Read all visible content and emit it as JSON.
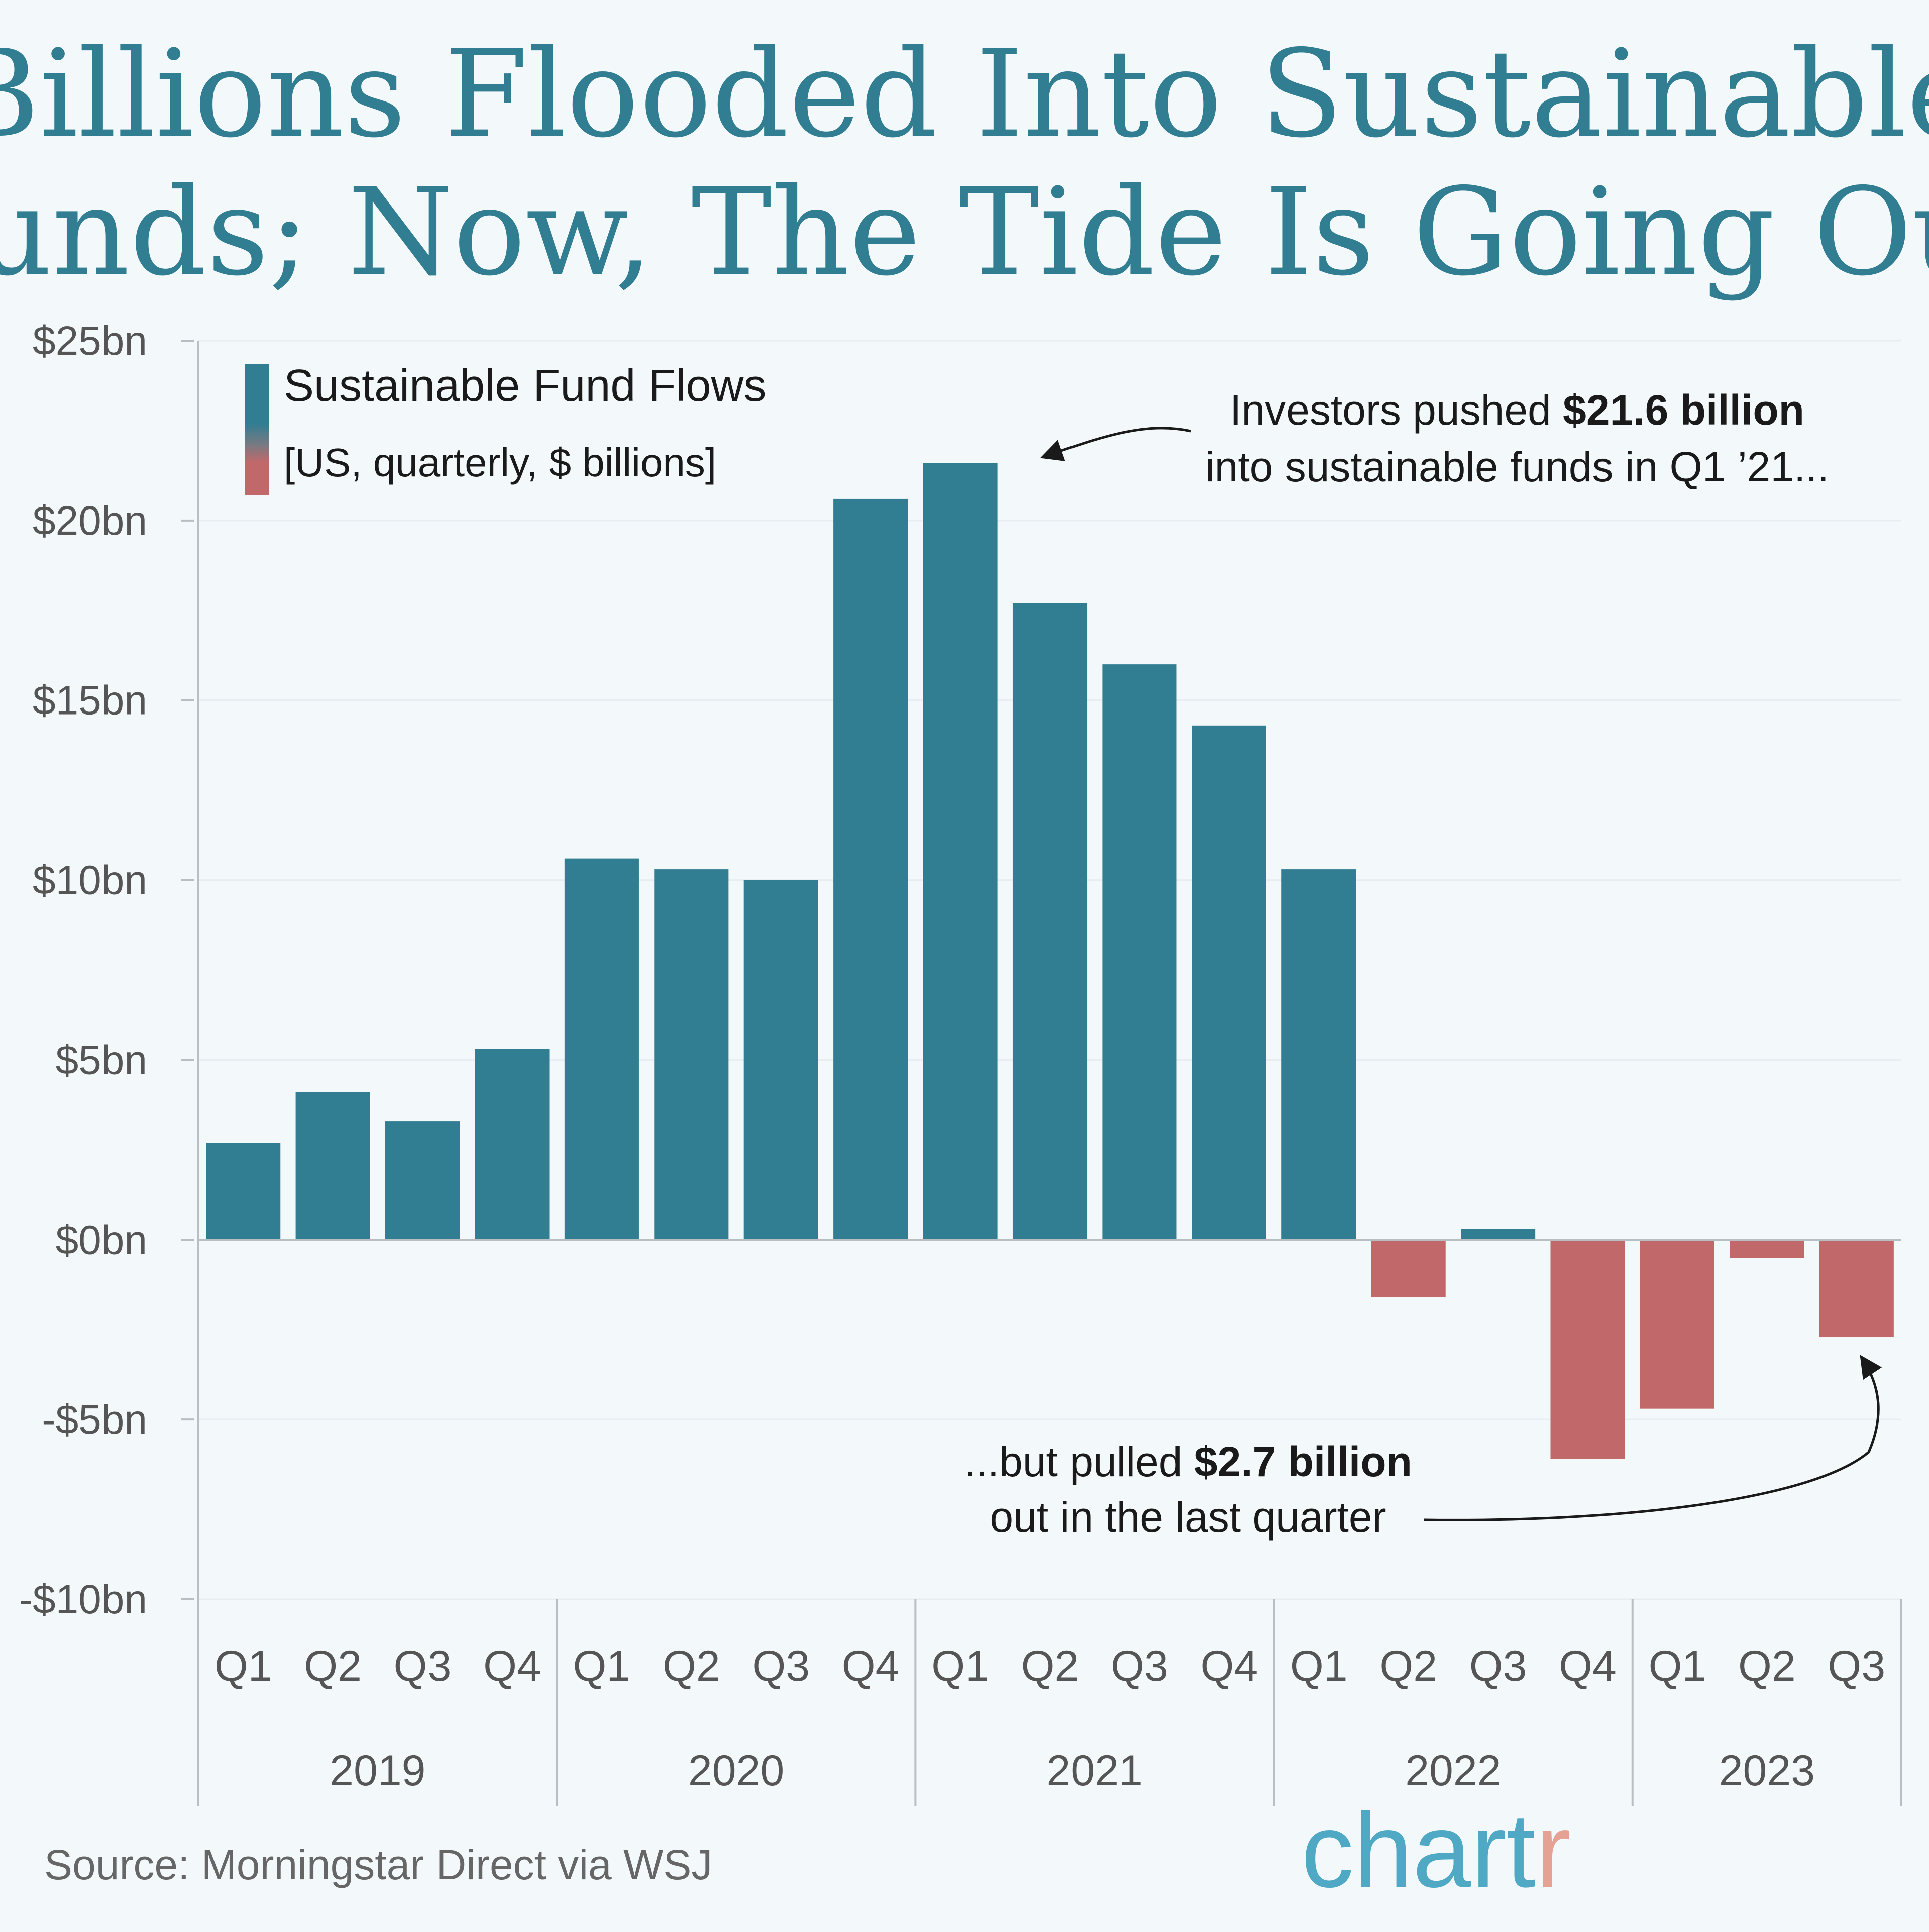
{
  "chart_data": {
    "type": "bar",
    "title_lines": [
      "Billions Flooded Into Sustainable",
      "Funds; Now, The Tide Is Going Out"
    ],
    "legend": {
      "title": "Sustainable Fund Flows",
      "subtitle": "[US, quarterly, $ billions]"
    },
    "categories": [
      "Q1",
      "Q2",
      "Q3",
      "Q4",
      "Q1",
      "Q2",
      "Q3",
      "Q4",
      "Q1",
      "Q2",
      "Q3",
      "Q4",
      "Q1",
      "Q2",
      "Q3",
      "Q4",
      "Q1",
      "Q2",
      "Q3"
    ],
    "years": [
      {
        "label": "2019",
        "quarters": 4
      },
      {
        "label": "2020",
        "quarters": 4
      },
      {
        "label": "2021",
        "quarters": 4
      },
      {
        "label": "2022",
        "quarters": 4
      },
      {
        "label": "2023",
        "quarters": 3
      }
    ],
    "values": [
      2.7,
      4.1,
      3.3,
      5.3,
      10.6,
      10.3,
      10.0,
      20.6,
      21.6,
      17.7,
      16.0,
      14.3,
      10.3,
      -1.6,
      0.3,
      -6.1,
      -4.7,
      -0.5,
      -2.7
    ],
    "yticks": [
      25,
      20,
      15,
      10,
      5,
      0,
      -5,
      -10
    ],
    "ytick_labels": [
      "$25bn",
      "$20bn",
      "$15bn",
      "$10bn",
      "$5bn",
      "$0bn",
      "-$5bn",
      "-$10bn"
    ],
    "ylim": [
      -10,
      25
    ],
    "colors": {
      "positive": "#317d92",
      "negative": "#c1686a",
      "title": "#317d92",
      "axis": "#b9bec2",
      "text": "#333333",
      "tick_text": "#555555"
    },
    "annotations": [
      {
        "target_index": 8,
        "lines": [
          [
            {
              "text": "Investors pushed ",
              "bold": false
            },
            {
              "text": "$21.6 billion",
              "bold": true
            }
          ],
          [
            {
              "text": "into sustainable funds in Q1 ’21...",
              "bold": false
            }
          ]
        ]
      },
      {
        "target_index": 18,
        "lines": [
          [
            {
              "text": "...but pulled ",
              "bold": false
            },
            {
              "text": "$2.7 billion",
              "bold": true
            }
          ],
          [
            {
              "text": "out in the last quarter",
              "bold": false
            }
          ]
        ]
      }
    ]
  },
  "footer": {
    "source": "Source: Morningstar Direct via WSJ",
    "brand_main": "chart",
    "brand_accent": "r",
    "brand_color": "#4fa9c4",
    "brand_accent_color": "#e6a195"
  }
}
